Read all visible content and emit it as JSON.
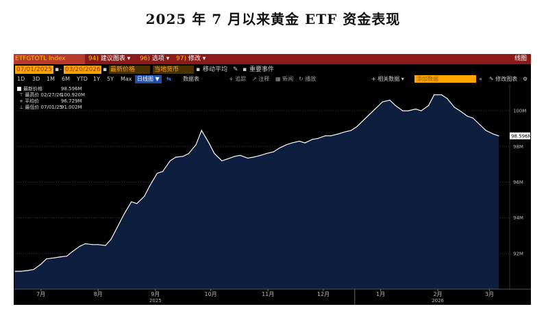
{
  "title": "2025 年 7 月以来黄金 ETF 资金表现",
  "terminal": {
    "ticker": "ETFGTOTL Index",
    "menu": [
      {
        "num": "94)",
        "label": "建议图表"
      },
      {
        "num": "96)",
        "label": "选项"
      },
      {
        "num": "97)",
        "label": "修改"
      }
    ],
    "chart_type": "线图",
    "date_start": "07/01/2025",
    "date_end": "03/20/2026",
    "field": "最新价格",
    "currency": "当地货币",
    "moving_avg": "移动平均",
    "events": "重要事件",
    "periods": [
      "1D",
      "3D",
      "1M",
      "6M",
      "YTD",
      "1Y",
      "5Y",
      "Max"
    ],
    "freq": "日线图",
    "chart_table": "数据表",
    "related": "相关数据",
    "search_placeholder": "添加数据",
    "edit_chart": "修改图表",
    "annotations": [
      "追踪",
      "注释",
      "新闻",
      "播放"
    ]
  },
  "legend": {
    "items": [
      {
        "label": "最新价格",
        "value": "98.596M"
      },
      {
        "label": "最高价 02/27/26",
        "value": "100.920M"
      },
      {
        "label": "平均价",
        "value": "96.729M"
      },
      {
        "label": "最低价 07/01/25",
        "value": "91.002M"
      }
    ]
  },
  "colors": {
    "area_fill": "#0d1e3f",
    "line": "#ffffff",
    "last_label_bg": "#ffffff"
  },
  "chart_data": {
    "type": "area",
    "title": "",
    "xlabel": "",
    "ylabel": "",
    "ylim": [
      90.0,
      101.5
    ],
    "y_ticks": [
      92,
      94,
      96,
      98,
      100
    ],
    "y_tick_labels": [
      "92M",
      "94M",
      "96M",
      "98M",
      "100M"
    ],
    "x_range": [
      "2025-07-01",
      "2026-03-20"
    ],
    "month_ticks": [
      {
        "date": "2025-07-15",
        "label": "7月"
      },
      {
        "date": "2025-08-15",
        "label": "8月"
      },
      {
        "date": "2025-09-15",
        "label": "9月"
      },
      {
        "date": "2025-10-15",
        "label": "10月"
      },
      {
        "date": "2025-11-15",
        "label": "11月"
      },
      {
        "date": "2025-12-15",
        "label": "12月"
      },
      {
        "date": "2026-01-15",
        "label": "1月"
      },
      {
        "date": "2026-02-15",
        "label": "2月"
      },
      {
        "date": "2026-03-15",
        "label": "3月"
      }
    ],
    "year_labels": [
      {
        "date": "2025-09-15",
        "label": "2025"
      },
      {
        "date": "2026-02-15",
        "label": "2026"
      }
    ],
    "last_value_label": "98.596M",
    "series": [
      {
        "name": "ETFGTOTL Index",
        "x": [
          "2025-07-01",
          "2025-07-04",
          "2025-07-08",
          "2025-07-11",
          "2025-07-15",
          "2025-07-18",
          "2025-07-22",
          "2025-07-25",
          "2025-07-29",
          "2025-08-01",
          "2025-08-05",
          "2025-08-08",
          "2025-08-12",
          "2025-08-15",
          "2025-08-19",
          "2025-08-22",
          "2025-08-26",
          "2025-08-29",
          "2025-09-02",
          "2025-09-05",
          "2025-09-09",
          "2025-09-12",
          "2025-09-16",
          "2025-09-19",
          "2025-09-23",
          "2025-09-26",
          "2025-09-30",
          "2025-10-03",
          "2025-10-07",
          "2025-10-10",
          "2025-10-14",
          "2025-10-17",
          "2025-10-21",
          "2025-10-24",
          "2025-10-28",
          "2025-10-31",
          "2025-11-04",
          "2025-11-07",
          "2025-11-11",
          "2025-11-14",
          "2025-11-18",
          "2025-11-21",
          "2025-11-25",
          "2025-11-28",
          "2025-12-02",
          "2025-12-05",
          "2025-12-09",
          "2025-12-12",
          "2025-12-16",
          "2025-12-19",
          "2025-12-23",
          "2025-12-26",
          "2025-12-30",
          "2026-01-02",
          "2026-01-06",
          "2026-01-09",
          "2026-01-13",
          "2026-01-16",
          "2026-01-20",
          "2026-01-23",
          "2026-01-27",
          "2026-01-30",
          "2026-02-03",
          "2026-02-06",
          "2026-02-10",
          "2026-02-13",
          "2026-02-17",
          "2026-02-20",
          "2026-02-24",
          "2026-02-27",
          "2026-03-03",
          "2026-03-06",
          "2026-03-10",
          "2026-03-13",
          "2026-03-17",
          "2026-03-20"
        ],
        "values": [
          91.0,
          91.0,
          91.05,
          91.1,
          91.4,
          91.7,
          91.75,
          91.8,
          91.85,
          92.1,
          92.4,
          92.55,
          92.5,
          92.5,
          92.45,
          92.8,
          93.6,
          94.2,
          94.9,
          94.8,
          95.2,
          95.8,
          96.5,
          96.6,
          97.2,
          97.4,
          97.45,
          97.6,
          98.1,
          98.9,
          98.2,
          97.6,
          97.2,
          97.3,
          97.45,
          97.5,
          97.35,
          97.4,
          97.5,
          97.6,
          97.7,
          97.9,
          98.1,
          98.2,
          98.3,
          98.2,
          98.4,
          98.45,
          98.6,
          98.6,
          98.7,
          98.8,
          98.9,
          99.1,
          99.5,
          99.8,
          100.2,
          100.5,
          100.6,
          100.3,
          100.0,
          100.0,
          100.1,
          100.0,
          100.3,
          100.9,
          100.9,
          100.7,
          100.2,
          100.0,
          99.7,
          99.6,
          99.2,
          98.9,
          98.7,
          98.596
        ]
      }
    ]
  }
}
